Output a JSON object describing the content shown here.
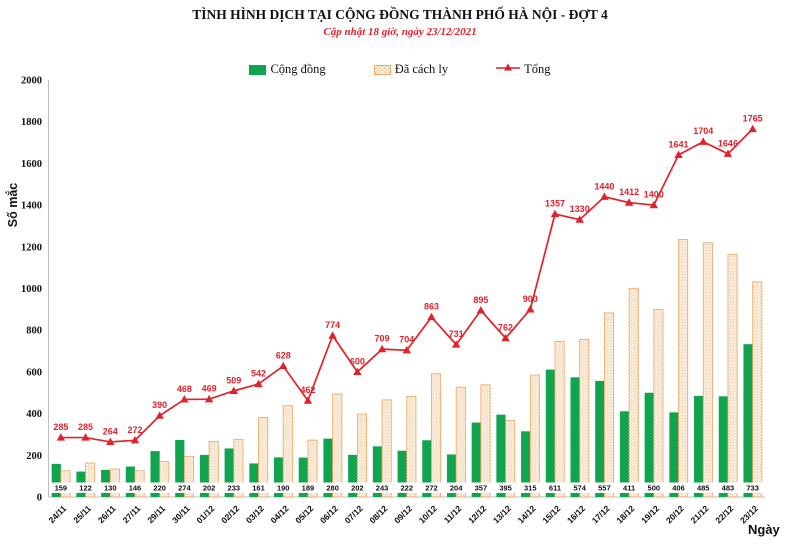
{
  "chart_data": {
    "type": "bar+line",
    "title": "TÌNH HÌNH DỊCH TẠI CỘNG ĐỒNG THÀNH PHỐ HÀ NỘI - ĐỢT 4",
    "subtitle": "Cập nhật 18 giờ, ngày 23/12/2021",
    "xlabel": "Ngày",
    "ylabel": "Số mắc",
    "ylim": [
      0,
      2000
    ],
    "yticks": [
      0,
      200,
      400,
      600,
      800,
      1000,
      1200,
      1400,
      1600,
      1800,
      2000
    ],
    "grid": false,
    "legend_position": "top",
    "categories": [
      "24/11",
      "25/11",
      "26/11",
      "27/11",
      "29/11",
      "30/11",
      "01/12",
      "02/12",
      "03/12",
      "04/12",
      "05/12",
      "06/12",
      "07/12",
      "08/12",
      "09/12",
      "10/12",
      "11/12",
      "12/12",
      "13/12",
      "14/12",
      "15/12",
      "16/12",
      "17/12",
      "18/12",
      "19/12",
      "20/12",
      "21/12",
      "22/12",
      "23/12"
    ],
    "series": [
      {
        "name": "Cộng đồng",
        "type": "bar",
        "color": "#10a44e",
        "data_labels": "bottom",
        "values": [
          159,
          122,
          130,
          146,
          220,
          274,
          202,
          233,
          161,
          190,
          189,
          280,
          202,
          243,
          222,
          272,
          204,
          357,
          395,
          315,
          611,
          574,
          557,
          411,
          500,
          406,
          485,
          483,
          733
        ]
      },
      {
        "name": "Đã cách ly",
        "type": "bar",
        "style": "hatched",
        "color": "#f6c795",
        "border_color": "#eda564",
        "data_labels": "none",
        "values": [
          126,
          163,
          134,
          126,
          170,
          194,
          267,
          276,
          381,
          438,
          273,
          494,
          398,
          466,
          482,
          591,
          527,
          538,
          367,
          585,
          746,
          756,
          883,
          1001,
          900,
          1235,
          1219,
          1163,
          1032
        ]
      },
      {
        "name": "Tổng",
        "type": "line",
        "color": "#e2222b",
        "marker": "triangle",
        "data_labels": "above",
        "values": [
          285,
          285,
          264,
          272,
          390,
          468,
          469,
          509,
          542,
          628,
          462,
          774,
          600,
          709,
          704,
          863,
          731,
          895,
          762,
          900,
          1357,
          1330,
          1440,
          1412,
          1400,
          1641,
          1704,
          1646,
          1765
        ]
      }
    ],
    "axis_color": "#bdbdbd"
  }
}
